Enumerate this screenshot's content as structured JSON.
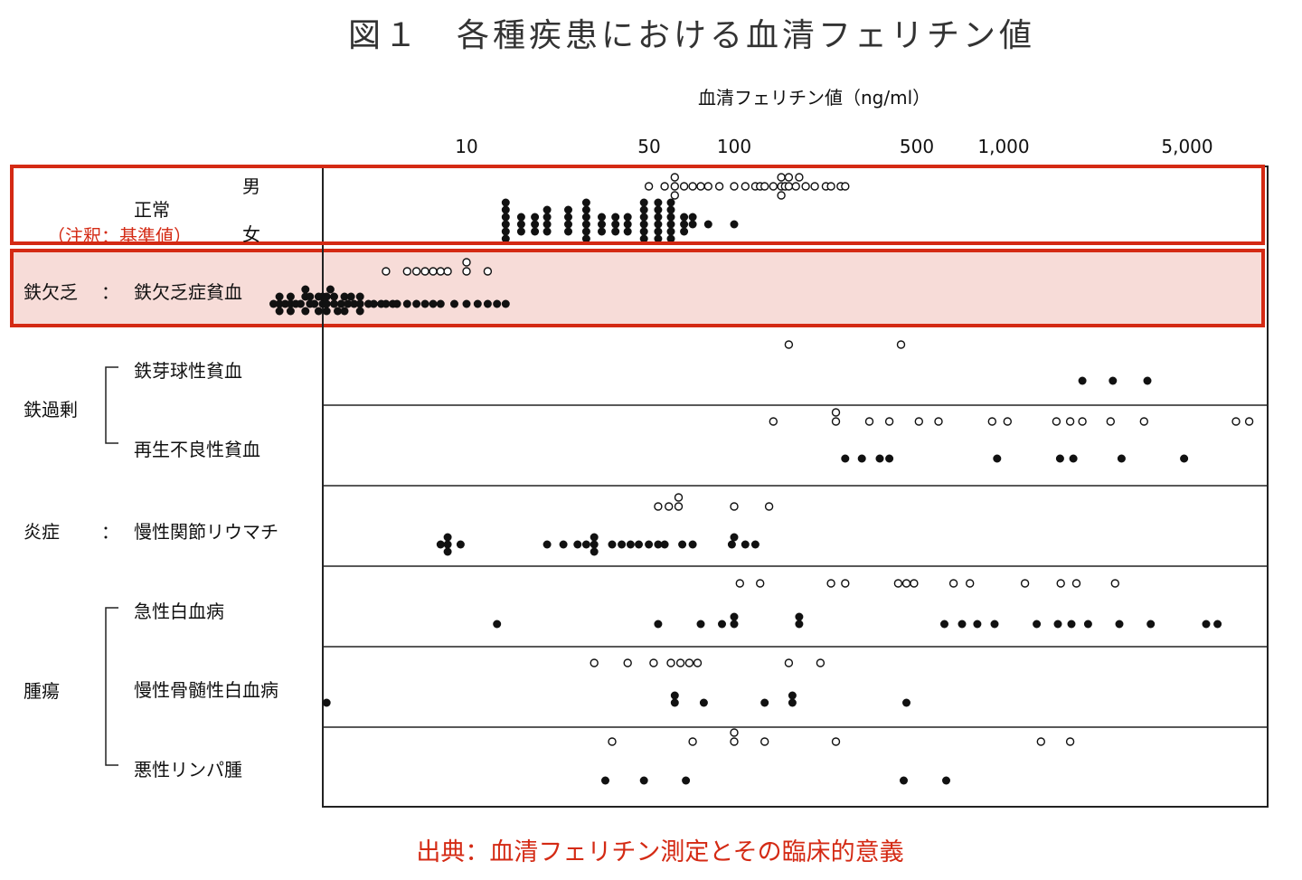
{
  "chart_data": {
    "type": "scatter",
    "title": "図１　各種疾患における血清フェリチン値",
    "xlabel": "血清フェリチン値（ng/ml）",
    "x_scale": "log",
    "xlim": [
      1.5,
      8500
    ],
    "x_ticks": [
      {
        "value": 10,
        "label": "10"
      },
      {
        "value": 50,
        "label": "50"
      },
      {
        "value": 100,
        "label": "100"
      },
      {
        "value": 500,
        "label": "500"
      },
      {
        "value": 1000,
        "label": "1,000"
      },
      {
        "value": 5000,
        "label": "5,000"
      }
    ],
    "legend": {
      "open": "男",
      "filled": "女"
    },
    "groups": [
      {
        "name": "正常",
        "note": "（注釈：基準値）",
        "highlight": "outline",
        "series": [
          {
            "name": "男",
            "marker": "open",
            "x": [
              48,
              55,
              60,
              60,
              60,
              65,
              70,
              75,
              80,
              88,
              100,
              110,
              120,
              125,
              130,
              140,
              150,
              150,
              150,
              155,
              160,
              160,
              170,
              175,
              185,
              200,
              220,
              230,
              250,
              260
            ]
          },
          {
            "name": "女",
            "marker": "filled",
            "x": [
              14,
              14,
              14,
              14,
              14,
              14,
              16,
              16,
              16,
              18,
              18,
              18,
              20,
              20,
              20,
              20,
              24,
              24,
              24,
              24,
              28,
              28,
              28,
              28,
              28,
              28,
              32,
              32,
              32,
              36,
              36,
              36,
              40,
              40,
              40,
              46,
              46,
              46,
              46,
              46,
              46,
              52,
              52,
              52,
              52,
              52,
              52,
              58,
              58,
              58,
              58,
              58,
              58,
              65,
              65,
              65,
              70,
              70,
              80,
              100
            ]
          }
        ]
      },
      {
        "name": "鉄欠乏：鉄欠乏症貧血",
        "highlight": "fill",
        "series": [
          {
            "name": "男",
            "marker": "open",
            "x": [
              5,
              6,
              6.5,
              7,
              7.5,
              8,
              8.5,
              10,
              10,
              12
            ]
          },
          {
            "name": "女",
            "marker": "filled",
            "x": [
              1.9,
              2,
              2,
              2,
              2.1,
              2.2,
              2.2,
              2.2,
              2.3,
              2.4,
              2.5,
              2.5,
              2.5,
              2.6,
              2.6,
              2.7,
              2.8,
              2.8,
              2.9,
              2.9,
              3,
              3,
              3,
              3.1,
              3.2,
              3.2,
              3.3,
              3.4,
              3.5,
              3.5,
              3.6,
              3.7,
              3.8,
              4,
              4,
              4,
              4.3,
              4.5,
              4.8,
              5,
              5.3,
              5.5,
              6,
              6.5,
              7,
              7.5,
              8,
              9,
              10,
              11,
              12,
              13,
              14
            ]
          }
        ]
      },
      {
        "name": "鉄芽球性貧血",
        "parent": "鉄過剰",
        "series": [
          {
            "name": "男",
            "marker": "open",
            "x": [
              160,
              420
            ]
          },
          {
            "name": "女",
            "marker": "filled",
            "x": [
              2000,
              2600,
              3500
            ]
          }
        ]
      },
      {
        "name": "再生不良性貧血",
        "parent": "鉄過剰",
        "series": [
          {
            "name": "男",
            "marker": "open",
            "x": [
              140,
              240,
              240,
              320,
              380,
              490,
              580,
              920,
              1050,
              1600,
              1800,
              2000,
              2550,
              3400,
              7500,
              8400
            ]
          },
          {
            "name": "女",
            "marker": "filled",
            "x": [
              260,
              300,
              350,
              380,
              960,
              1650,
              1850,
              2800,
              4800
            ]
          }
        ]
      },
      {
        "name": "炎症：慢性関節リウマチ",
        "series": [
          {
            "name": "男",
            "marker": "open",
            "x": [
              52,
              57,
              62,
              62,
              100,
              135
            ]
          },
          {
            "name": "女",
            "marker": "filled",
            "x": [
              8,
              8.5,
              8.5,
              8.5,
              9.5,
              20,
              23,
              26,
              28,
              30,
              30,
              30,
              35,
              38,
              41,
              44,
              48,
              52,
              55,
              64,
              70,
              98,
              100,
              110,
              120
            ]
          }
        ]
      },
      {
        "name": "急性白血病",
        "parent": "腫瘍",
        "series": [
          {
            "name": "男",
            "marker": "open",
            "x": [
              105,
              125,
              230,
              260,
              410,
              440,
              470,
              660,
              760,
              1220,
              1660,
              1900,
              2650
            ]
          },
          {
            "name": "女",
            "marker": "filled",
            "x": [
              13,
              52,
              75,
              90,
              100,
              100,
              175,
              175,
              610,
              710,
              810,
              940,
              1350,
              1620,
              1820,
              2100,
              2750,
              3600,
              5800,
              6400
            ]
          }
        ]
      },
      {
        "name": "慢性骨髄性白血病",
        "parent": "腫瘍",
        "series": [
          {
            "name": "男",
            "marker": "open",
            "x": [
              30,
              40,
              50,
              58,
              63,
              68,
              73,
              160,
              210
            ]
          },
          {
            "name": "女",
            "marker": "filled",
            "x": [
              3,
              60,
              60,
              77,
              130,
              165,
              165,
              440
            ]
          }
        ]
      },
      {
        "name": "悪性リンパ腫",
        "parent": "腫瘍",
        "series": [
          {
            "name": "男",
            "marker": "open",
            "x": [
              35,
              70,
              100,
              100,
              130,
              240,
              1400,
              1800
            ]
          },
          {
            "name": "女",
            "marker": "filled",
            "x": [
              33,
              46,
              66,
              430,
              620
            ]
          }
        ]
      }
    ]
  },
  "labels": {
    "male": "男",
    "female": "女",
    "normal": "正常",
    "normal_note": "（注釈：基準値）",
    "iron_def_cat": "鉄欠乏",
    "iron_def_colon": "：",
    "iron_def_sub": "鉄欠乏症貧血",
    "iron_over_cat": "鉄過剰",
    "sideroblastic": "鉄芽球性貧血",
    "aplastic": "再生不良性貧血",
    "inflam_cat": "炎症",
    "inflam_colon": "：",
    "ra": "慢性関節リウマチ",
    "tumor_cat": "腫瘍",
    "aml": "急性白血病",
    "cml": "慢性骨髄性白血病",
    "lymphoma": "悪性リンパ腫"
  },
  "source": "出典：血清フェリチン測定とその臨床的意義",
  "colors": {
    "highlight": "#d42a14",
    "highlight_fill": "#f7dcd8"
  }
}
